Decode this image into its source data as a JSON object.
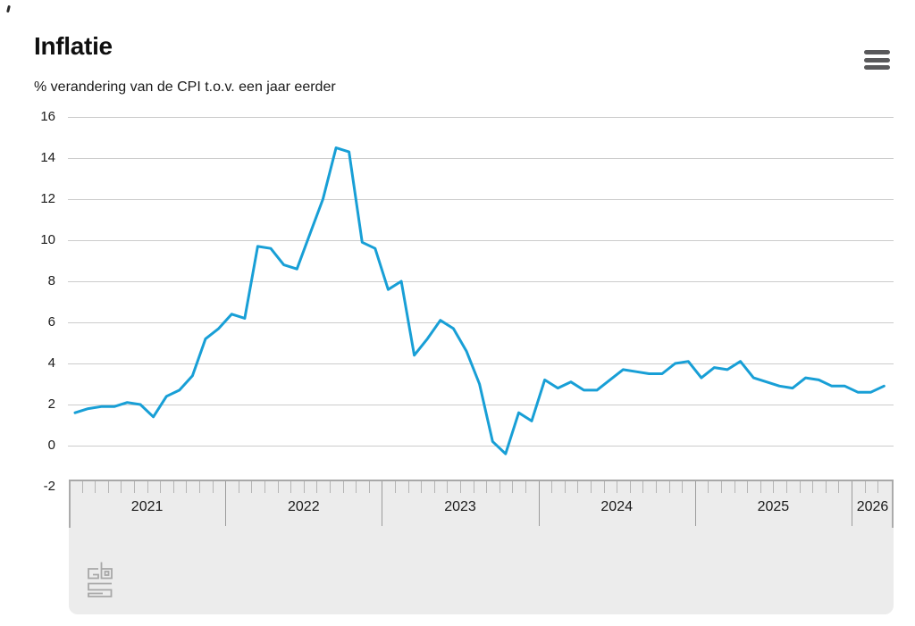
{
  "header": {
    "title": "Inflatie",
    "subtitle": "% verandering van de CPI t.o.v. een jaar eerder",
    "menu_button": {
      "icon": "hamburger-menu",
      "label": "menu"
    }
  },
  "branding": {
    "logo": "CBS"
  },
  "colors": {
    "line": "#189fd6",
    "gridline": "#cccccc",
    "axis_band_background": "#ececec",
    "axis_band_top_border": "#a8a8a8",
    "month_tick": "#b5b5b5",
    "year_tick": "#9c9c9c",
    "text": "#1a1a1a",
    "logo": "#a8a8a8",
    "menu_icon": "#59595b"
  },
  "chart_data": {
    "type": "line",
    "title": "Inflatie",
    "ylabel": "% verandering van de CPI t.o.v. een jaar eerder",
    "x_frequency": "monthly",
    "x_start": "2021-01",
    "x_end": "2026-03",
    "year_labels": [
      "2021",
      "2022",
      "2023",
      "2024",
      "2025",
      "2026"
    ],
    "y_tick_labels": [
      "16",
      "14",
      "12",
      "10",
      "8",
      "6",
      "4",
      "2",
      "0",
      "-2"
    ],
    "ylim": [
      -2,
      16
    ],
    "grid": true,
    "legend": false,
    "series": [
      {
        "name": "Inflatie (% verandering CPI t.o.v. een jaar eerder)",
        "color": "#189fd6",
        "values_by_year": {
          "2021": [
            1.6,
            1.8,
            1.9,
            1.9,
            2.1,
            2.0,
            1.4,
            2.4,
            2.7,
            3.4,
            5.2,
            5.7
          ],
          "2022": [
            6.4,
            6.2,
            9.7,
            9.6,
            8.8,
            8.6,
            10.3,
            12.0,
            14.5,
            14.3,
            9.9,
            9.6
          ],
          "2023": [
            7.6,
            8.0,
            4.4,
            5.2,
            6.1,
            5.7,
            4.6,
            3.0,
            0.2,
            -0.4,
            1.6,
            1.2
          ],
          "2024": [
            3.2,
            2.8,
            3.1,
            2.7,
            2.7,
            3.2,
            3.7,
            3.6,
            3.5,
            3.5,
            4.0,
            4.1
          ],
          "2025": [
            3.3,
            3.8,
            3.7,
            4.1,
            3.3,
            3.1,
            2.9,
            2.8,
            3.3,
            3.2,
            2.9,
            2.9
          ],
          "2026": [
            2.6,
            2.6,
            2.9
          ]
        }
      }
    ]
  }
}
